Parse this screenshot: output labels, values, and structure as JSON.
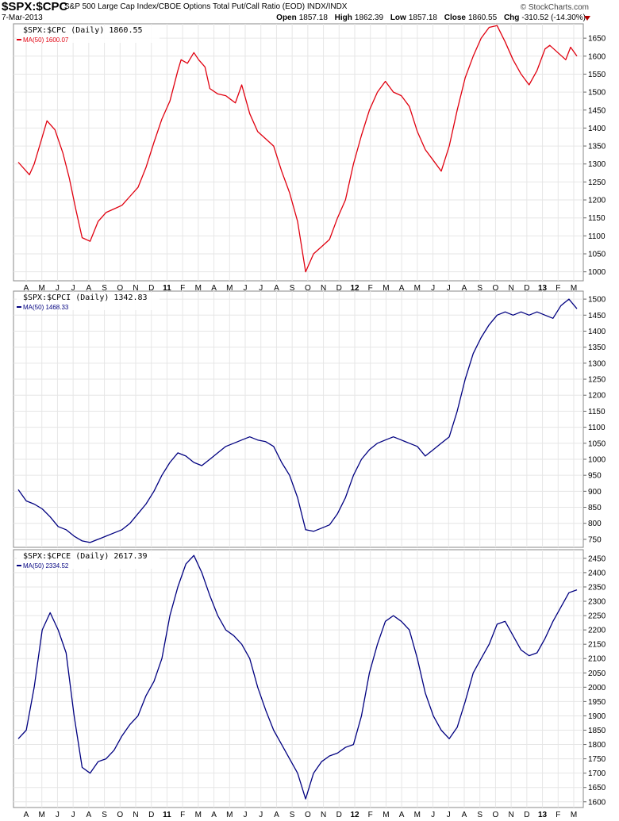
{
  "header": {
    "symbol": "$SPX:$CPC",
    "description": "S&P 500 Large Cap Index/CBOE Options Total Put/Call Ratio (EOD)  INDX/INDX",
    "date": "7-Mar-2013",
    "brand": "© StockCharts.com",
    "open_label": "Open",
    "open": "1857.18",
    "high_label": "High",
    "high": "1862.39",
    "low_label": "Low",
    "low": "1857.18",
    "close_label": "Close",
    "close": "1860.55",
    "chg_label": "Chg",
    "chg": "-310.52 (-14.30%)",
    "chg_color": "#b00000"
  },
  "x_axis_labels": [
    "A",
    "M",
    "J",
    "J",
    "A",
    "S",
    "O",
    "N",
    "D",
    "11",
    "F",
    "M",
    "A",
    "M",
    "J",
    "J",
    "A",
    "S",
    "O",
    "N",
    "D",
    "12",
    "F",
    "M",
    "A",
    "M",
    "J",
    "J",
    "A",
    "S",
    "O",
    "N",
    "D",
    "13",
    "F",
    "M"
  ],
  "chart_data": [
    {
      "type": "line",
      "title": "$SPX:$CPC (Daily) 1860.55",
      "legend": "MA(50) 1600.07",
      "color": "#e0000f",
      "ylim": [
        975,
        1690
      ],
      "yticks": [
        1000,
        1050,
        1100,
        1150,
        1200,
        1250,
        1300,
        1350,
        1400,
        1450,
        1500,
        1550,
        1600,
        1650
      ],
      "x": [
        0,
        0.7,
        1,
        1.4,
        1.8,
        2.3,
        2.8,
        3.2,
        3.6,
        4,
        4.5,
        5,
        5.5,
        6,
        6.5,
        7,
        7.5,
        8,
        8.5,
        9,
        9.5,
        10,
        10.2,
        10.6,
        11,
        11.3,
        11.7,
        12,
        12.5,
        13,
        13.3,
        13.6,
        14,
        14.5,
        15,
        15.5,
        16,
        16.5,
        17,
        17.5,
        18,
        18.5,
        19,
        19.5,
        20,
        20.5,
        21,
        21.5,
        22,
        22.5,
        23,
        23.5,
        24,
        24.5,
        25,
        25.5,
        26,
        26.5,
        27,
        27.5,
        28,
        28.5,
        29,
        29.5,
        30,
        30.5,
        31,
        31.5,
        32,
        32.5,
        33,
        33.3,
        33.8,
        34.3,
        34.6,
        35
      ],
      "y": [
        1305,
        1270,
        1300,
        1360,
        1420,
        1395,
        1330,
        1260,
        1175,
        1095,
        1085,
        1140,
        1165,
        1175,
        1185,
        1210,
        1235,
        1290,
        1360,
        1425,
        1475,
        1560,
        1590,
        1580,
        1610,
        1590,
        1570,
        1510,
        1495,
        1490,
        1480,
        1470,
        1520,
        1440,
        1390,
        1370,
        1350,
        1280,
        1220,
        1140,
        1000,
        1050,
        1070,
        1090,
        1150,
        1200,
        1300,
        1380,
        1450,
        1500,
        1530,
        1500,
        1490,
        1460,
        1390,
        1340,
        1310,
        1280,
        1350,
        1450,
        1540,
        1600,
        1650,
        1680,
        1685,
        1640,
        1590,
        1550,
        1520,
        1560,
        1620,
        1630,
        1610,
        1590,
        1625,
        1600
      ]
    },
    {
      "type": "line",
      "title": "$SPX:$CPCI (Daily) 1342.83",
      "legend": "MA(50) 1468.33",
      "color": "#000080",
      "ylim": [
        725,
        1525
      ],
      "yticks": [
        750,
        800,
        850,
        900,
        950,
        1000,
        1050,
        1100,
        1150,
        1200,
        1250,
        1300,
        1350,
        1400,
        1450,
        1500
      ],
      "x": [
        0,
        0.5,
        1,
        1.5,
        2,
        2.5,
        3,
        3.5,
        4,
        4.5,
        5,
        5.5,
        6,
        6.5,
        7,
        7.5,
        8,
        8.5,
        9,
        9.5,
        10,
        10.5,
        11,
        11.5,
        12,
        12.5,
        13,
        13.5,
        14,
        14.5,
        15,
        15.5,
        16,
        16.5,
        17,
        17.5,
        18,
        18.5,
        19,
        19.5,
        20,
        20.5,
        21,
        21.5,
        22,
        22.5,
        23,
        23.5,
        24,
        24.5,
        25,
        25.5,
        26,
        26.5,
        27,
        27.5,
        28,
        28.5,
        29,
        29.5,
        30,
        30.5,
        31,
        31.5,
        32,
        32.5,
        33,
        33.5,
        34,
        34.5,
        35
      ],
      "y": [
        905,
        870,
        860,
        845,
        820,
        790,
        780,
        760,
        745,
        740,
        750,
        760,
        770,
        780,
        800,
        830,
        860,
        900,
        950,
        990,
        1020,
        1010,
        990,
        980,
        1000,
        1020,
        1040,
        1050,
        1060,
        1070,
        1060,
        1055,
        1040,
        990,
        950,
        880,
        780,
        775,
        785,
        795,
        830,
        880,
        950,
        1000,
        1030,
        1050,
        1060,
        1070,
        1060,
        1050,
        1040,
        1010,
        1030,
        1050,
        1070,
        1150,
        1250,
        1330,
        1380,
        1420,
        1450,
        1460,
        1450,
        1460,
        1450,
        1460,
        1450,
        1440,
        1480,
        1500,
        1470
      ]
    },
    {
      "type": "line",
      "title": "$SPX:$CPCE (Daily) 2617.39",
      "legend": "MA(50) 2334.52",
      "color": "#000080",
      "ylim": [
        1580,
        2480
      ],
      "yticks": [
        1600,
        1650,
        1700,
        1750,
        1800,
        1850,
        1900,
        1950,
        2000,
        2050,
        2100,
        2150,
        2200,
        2250,
        2300,
        2350,
        2400,
        2450
      ],
      "x": [
        0,
        0.5,
        1,
        1.5,
        2,
        2.5,
        3,
        3.5,
        4,
        4.5,
        5,
        5.5,
        6,
        6.5,
        7,
        7.5,
        8,
        8.5,
        9,
        9.5,
        10,
        10.5,
        11,
        11.5,
        12,
        12.5,
        13,
        13.5,
        14,
        14.5,
        15,
        15.5,
        16,
        16.5,
        17,
        17.5,
        18,
        18.5,
        19,
        19.5,
        20,
        20.5,
        21,
        21.5,
        22,
        22.5,
        23,
        23.5,
        24,
        24.5,
        25,
        25.5,
        26,
        26.5,
        27,
        27.5,
        28,
        28.5,
        29,
        29.5,
        30,
        30.5,
        31,
        31.5,
        32,
        32.5,
        33,
        33.5,
        34,
        34.5,
        35
      ],
      "y": [
        1820,
        1850,
        2000,
        2200,
        2260,
        2200,
        2120,
        1900,
        1720,
        1700,
        1740,
        1750,
        1780,
        1830,
        1870,
        1900,
        1970,
        2020,
        2100,
        2250,
        2350,
        2430,
        2460,
        2400,
        2320,
        2250,
        2200,
        2180,
        2150,
        2100,
        2000,
        1920,
        1850,
        1800,
        1750,
        1700,
        1610,
        1700,
        1740,
        1760,
        1770,
        1790,
        1800,
        1900,
        2050,
        2150,
        2230,
        2250,
        2230,
        2200,
        2100,
        1980,
        1900,
        1850,
        1820,
        1860,
        1950,
        2050,
        2100,
        2150,
        2220,
        2230,
        2180,
        2130,
        2110,
        2120,
        2170,
        2230,
        2280,
        2330,
        2340
      ]
    }
  ]
}
